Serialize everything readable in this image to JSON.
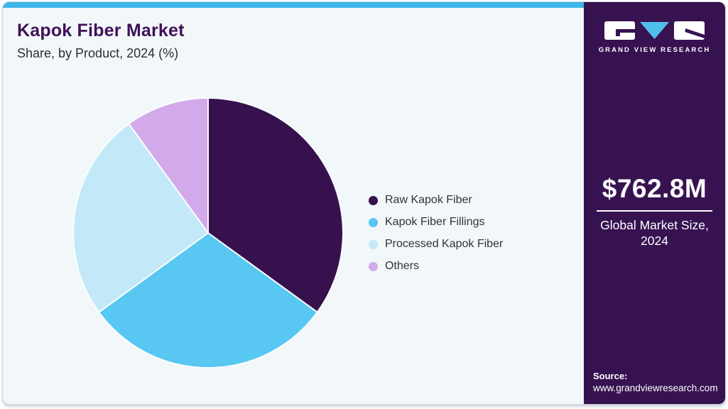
{
  "header": {
    "title": "Kapok Fiber Market",
    "subtitle": "Share, by Product, 2024 (%)"
  },
  "chart_data": {
    "type": "pie",
    "title": "Kapok Fiber Market Share, by Product, 2024 (%)",
    "start_angle_deg": 0,
    "direction": "clockwise",
    "legend_position": "right",
    "values_are_percent": true,
    "slices": [
      {
        "label": "Raw Kapok Fiber",
        "value": 35,
        "color": "#36114e"
      },
      {
        "label": "Kapok Fiber Fillings",
        "value": 30,
        "color": "#58c7f2"
      },
      {
        "label": "Processed Kapok Fiber",
        "value": 25,
        "color": "#c3e9f8"
      },
      {
        "label": "Others",
        "value": 10,
        "color": "#d3aae9"
      }
    ]
  },
  "sidebar": {
    "logo": {
      "brand": "GRAND VIEW RESEARCH"
    },
    "market_size": {
      "value": "$762.8M",
      "label": "Global Market Size, 2024"
    },
    "source": {
      "label": "Source:",
      "url": "www.grandviewresearch.com"
    }
  },
  "colors": {
    "top_bar": "#3eb7e8",
    "card_background": "#f2f7fa",
    "sidebar_background": "#371251",
    "title_text": "#401259",
    "body_text": "#2e2e31",
    "sidebar_text": "#ffffff",
    "logo_triangle": "#4fbfe9",
    "slice_gap_stroke": "#fbfdfe"
  }
}
